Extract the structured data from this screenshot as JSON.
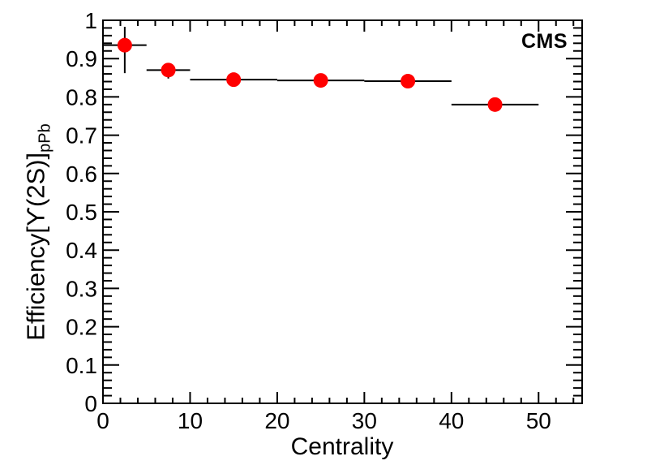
{
  "annotation": {
    "experiment_label": "CMS"
  },
  "chart_data": {
    "type": "scatter",
    "title": "",
    "xlabel": "Centrality",
    "ylabel_main": "Efficiency[ϒ(2S)]",
    "ylabel_subscript": "pPb",
    "xlim": [
      0,
      55
    ],
    "ylim": [
      0,
      1
    ],
    "grid": false,
    "legend": "none",
    "x_major_tick_values": [
      0,
      10,
      20,
      30,
      40,
      50
    ],
    "x_major_tick_labels": [
      "0",
      "10",
      "20",
      "30",
      "40",
      "50"
    ],
    "x_minor_step": 2,
    "y_major_tick_values": [
      0,
      0.1,
      0.2,
      0.3,
      0.4,
      0.5,
      0.6,
      0.7,
      0.8,
      0.9,
      1
    ],
    "y_major_tick_labels": [
      "0",
      "0.1",
      "0.2",
      "0.3",
      "0.4",
      "0.5",
      "0.6",
      "0.7",
      "0.8",
      "0.9",
      "1"
    ],
    "y_minor_step": 0.02,
    "marker_color": "#ff0000",
    "line_color": "#000000",
    "points": [
      {
        "x": 2.5,
        "xlo": 0,
        "xhi": 5,
        "y": 0.935,
        "yerr_up": 0.048,
        "yerr_down": 0.073
      },
      {
        "x": 7.5,
        "xlo": 5,
        "xhi": 10,
        "y": 0.87,
        "yerr_up": 0.018,
        "yerr_down": 0.022
      },
      {
        "x": 15,
        "xlo": 10,
        "xhi": 20,
        "y": 0.845,
        "yerr_up": 0.004,
        "yerr_down": 0.004
      },
      {
        "x": 25,
        "xlo": 20,
        "xhi": 30,
        "y": 0.843,
        "yerr_up": 0.004,
        "yerr_down": 0.004
      },
      {
        "x": 35,
        "xlo": 30,
        "xhi": 40,
        "y": 0.841,
        "yerr_up": 0.004,
        "yerr_down": 0.004
      },
      {
        "x": 45,
        "xlo": 40,
        "xhi": 50,
        "y": 0.78,
        "yerr_up": 0.004,
        "yerr_down": 0.004
      }
    ]
  }
}
